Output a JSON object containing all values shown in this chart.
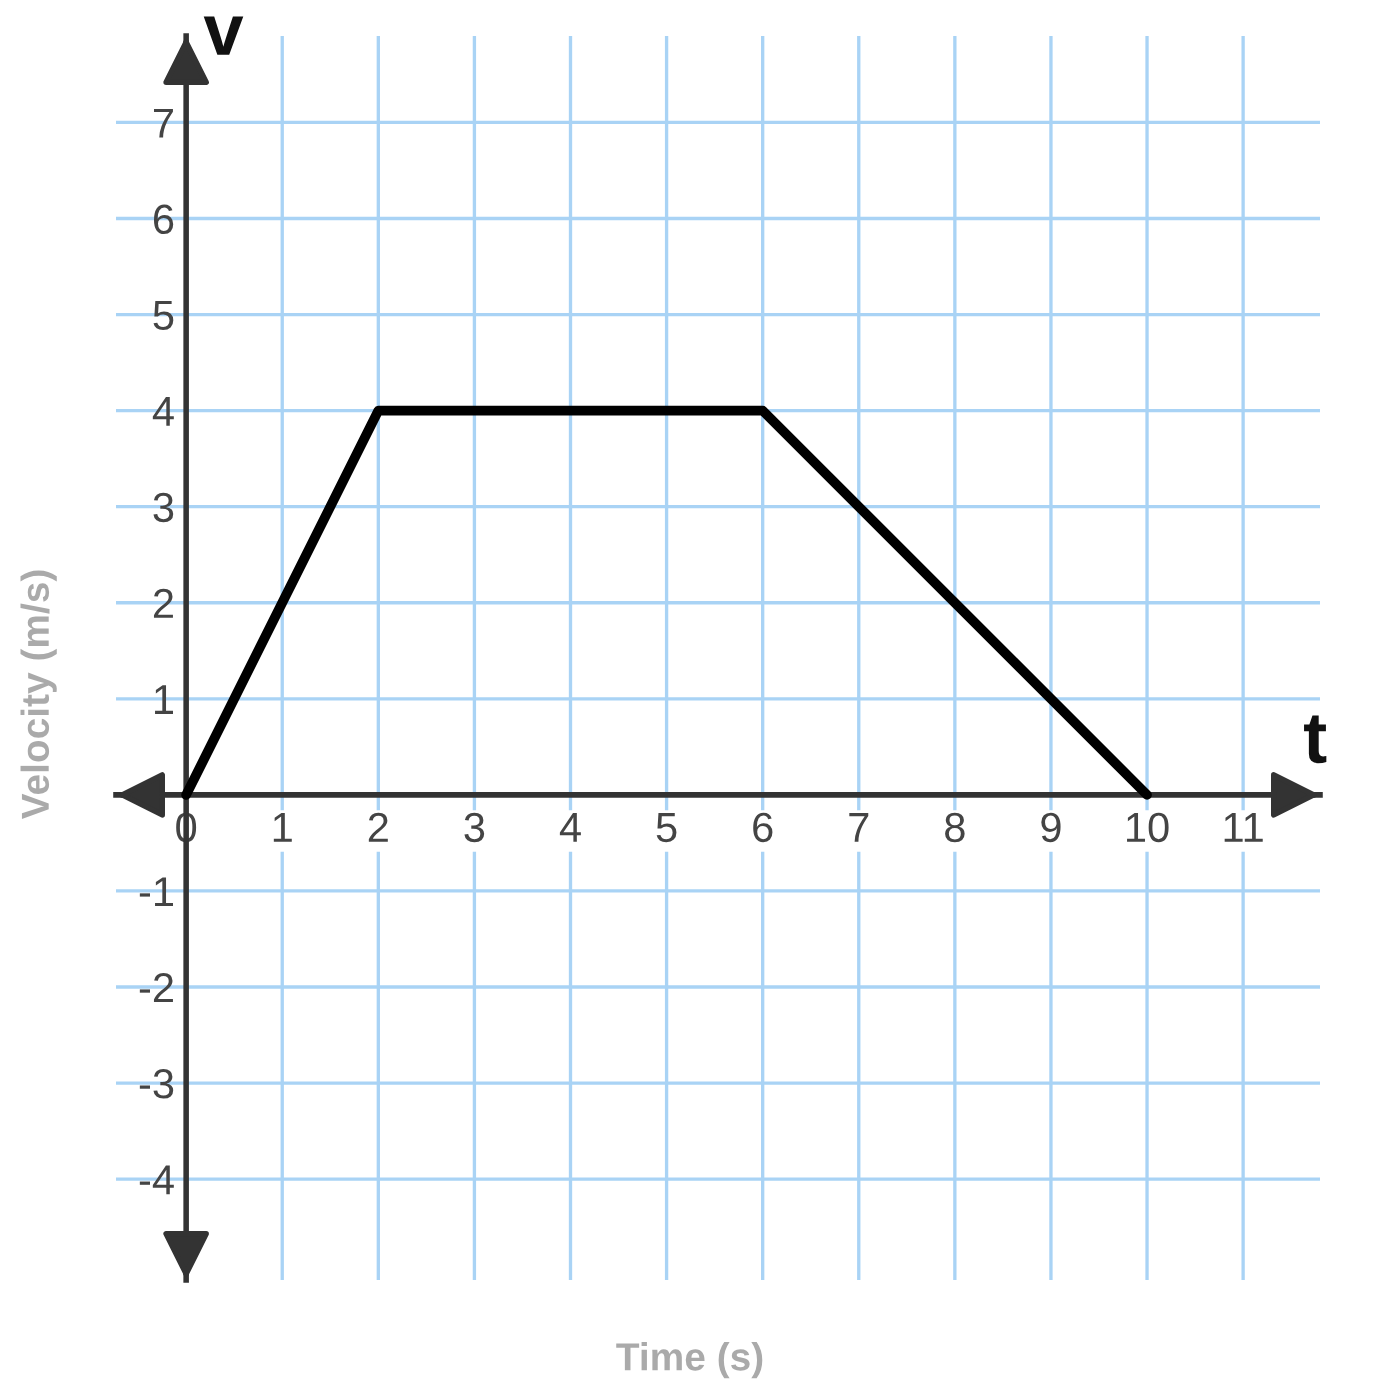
{
  "chart_data": {
    "type": "line",
    "xlabel": "Time (s)",
    "ylabel": "Velocity (m/s)",
    "annotations": [
      "v",
      "t"
    ],
    "series": [
      {
        "color": "#000000",
        "x": [
          0,
          2,
          6,
          10
        ],
        "values": [
          0,
          4,
          4,
          0
        ]
      }
    ],
    "xlim": [
      -0.73,
      11.8
    ],
    "ylim": [
      -5.05,
      7.9
    ],
    "xticks": [
      0,
      1,
      2,
      3,
      4,
      5,
      6,
      7,
      8,
      9,
      10,
      11
    ],
    "yticks": [
      -4,
      -3,
      -2,
      -1,
      1,
      2,
      3,
      4,
      5,
      6,
      7
    ],
    "grid": true,
    "line_style": "solid"
  }
}
